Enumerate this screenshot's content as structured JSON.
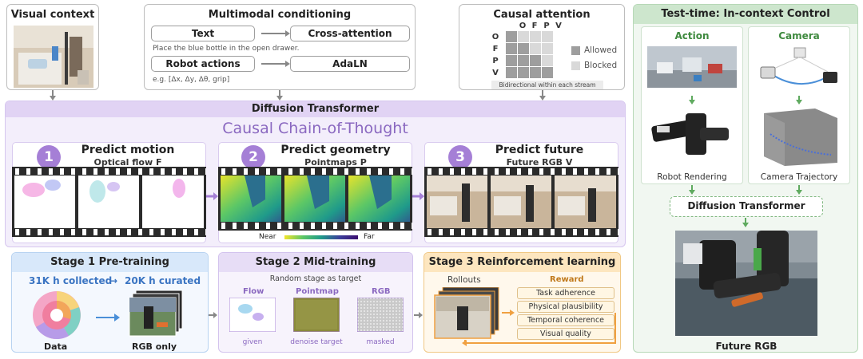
{
  "visual_context": {
    "title": "Visual context"
  },
  "multimodal": {
    "title": "Multimodal conditioning",
    "text_label": "Text",
    "cross_attention_label": "Cross-attention",
    "text_example": "Place the blue bottle in the open drawer.",
    "robot_actions_label": "Robot actions",
    "adaln_label": "AdaLN",
    "actions_example": "e.g. [Δx, Δy, Δθ, grip]"
  },
  "causal_attention": {
    "title": "Causal attention",
    "col_labels": [
      "O",
      "F",
      "P",
      "V"
    ],
    "row_labels": [
      "O",
      "F",
      "P",
      "V"
    ],
    "allowed_label": "Allowed",
    "blocked_label": "Blocked",
    "footer": "Bidirectional within each stream",
    "colors": {
      "allowed": "#9e9e9e",
      "blocked": "#d9d9d9"
    }
  },
  "dit": {
    "title": "Diffusion Transformer",
    "subtitle": "Causal Chain-of-Thought",
    "steps": [
      {
        "num": "1",
        "title": "Predict motion",
        "subtitle": "Optical flow F"
      },
      {
        "num": "2",
        "title": "Predict geometry",
        "subtitle": "Pointmaps P"
      },
      {
        "num": "3",
        "title": "Predict future",
        "subtitle": "Future RGB V"
      }
    ],
    "near_label": "Near",
    "far_label": "Far"
  },
  "stage1": {
    "title": "Stage 1  Pre-training",
    "collected": "31K h collected",
    "arrow": "→",
    "curated": "20K h curated",
    "data_label": "Data",
    "rgb_only_label": "RGB only"
  },
  "stage2": {
    "title": "Stage 2  Mid-training",
    "subtitle": "Random stage as target",
    "items": [
      {
        "label": "Flow",
        "caption": "given"
      },
      {
        "label": "Pointmap",
        "caption": "denoise target"
      },
      {
        "label": "RGB",
        "caption": "masked"
      }
    ]
  },
  "stage3": {
    "title": "Stage 3  Reinforcement learning",
    "rollouts_label": "Rollouts",
    "reward_label": "Reward",
    "rewards": [
      "Task adherence",
      "Physical plausibility",
      "Temporal coherence",
      "Visual quality"
    ]
  },
  "test_time": {
    "title": "Test-time: In-context Control",
    "action_label": "Action",
    "camera_label": "Camera",
    "robot_rendering_label": "Robot Rendering",
    "camera_trajectory_label": "Camera Trajectory",
    "dit_label": "Diffusion Transformer",
    "future_rgb_label": "Future RGB"
  },
  "colors": {
    "purple_accent": "#a57fd6",
    "green_accent": "#5faa5f",
    "blue_accent": "#4a8fd8",
    "orange_accent": "#f0a040"
  }
}
